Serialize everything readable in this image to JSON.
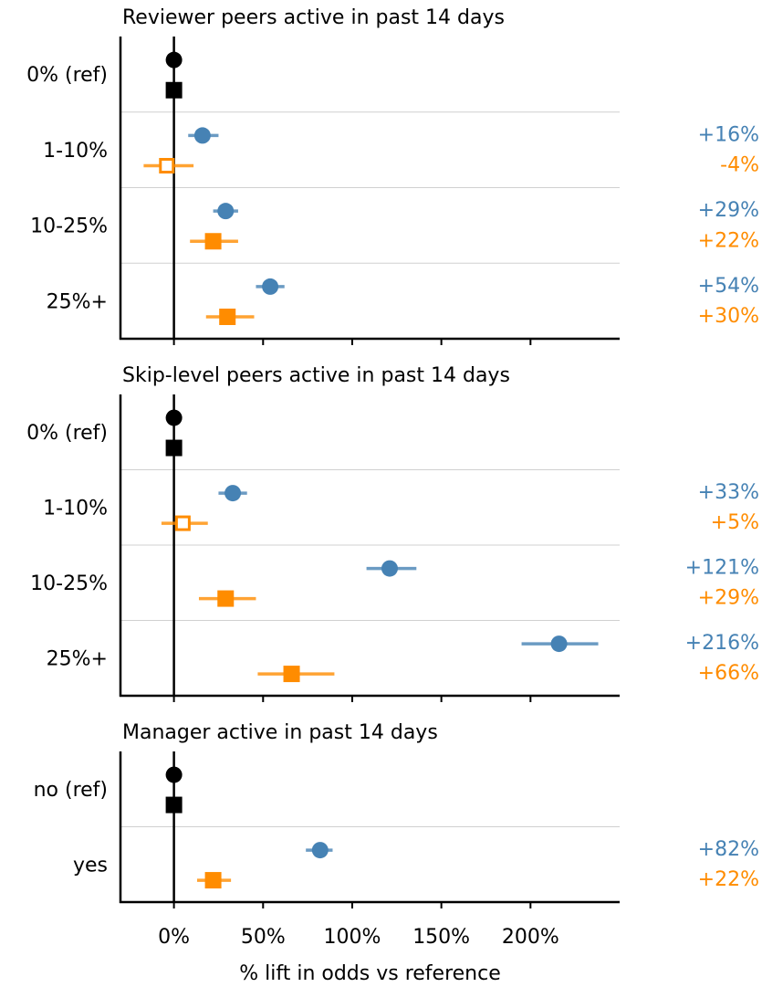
{
  "chart_data": [
    {
      "type": "forest",
      "title": "Reviewer peers active in past 14 days",
      "categories": [
        "0% (ref)",
        "1-10%",
        "10-25%",
        "25%+"
      ],
      "xlim": [
        -30,
        250
      ],
      "series": [
        {
          "marker": "circle",
          "colors": [
            "#000000",
            "#4682b4",
            "#4682b4",
            "#4682b4"
          ],
          "filled": [
            true,
            true,
            true,
            true
          ],
          "values": [
            0,
            16,
            29,
            54
          ],
          "lower": [
            null,
            8,
            22,
            46
          ],
          "upper": [
            null,
            25,
            36,
            62
          ],
          "value_labels": [
            null,
            "+16%",
            "+29%",
            "+54%"
          ]
        },
        {
          "marker": "square",
          "colors": [
            "#000000",
            "#ff8c00",
            "#ff8c00",
            "#ff8c00"
          ],
          "filled": [
            true,
            false,
            true,
            true
          ],
          "values": [
            0,
            -4,
            22,
            30
          ],
          "lower": [
            null,
            -17,
            9,
            18
          ],
          "upper": [
            null,
            11,
            36,
            45
          ],
          "value_labels": [
            null,
            "-4%",
            "+22%",
            "+30%"
          ]
        }
      ]
    },
    {
      "type": "forest",
      "title": "Skip-level peers active in past 14 days",
      "categories": [
        "0% (ref)",
        "1-10%",
        "10-25%",
        "25%+"
      ],
      "xlim": [
        -30,
        250
      ],
      "series": [
        {
          "marker": "circle",
          "colors": [
            "#000000",
            "#4682b4",
            "#4682b4",
            "#4682b4"
          ],
          "filled": [
            true,
            true,
            true,
            true
          ],
          "values": [
            0,
            33,
            121,
            216
          ],
          "lower": [
            null,
            25,
            108,
            195
          ],
          "upper": [
            null,
            41,
            136,
            238
          ],
          "value_labels": [
            null,
            "+33%",
            "+121%",
            "+216%"
          ]
        },
        {
          "marker": "square",
          "colors": [
            "#000000",
            "#ff8c00",
            "#ff8c00",
            "#ff8c00"
          ],
          "filled": [
            true,
            false,
            true,
            true
          ],
          "values": [
            0,
            5,
            29,
            66
          ],
          "lower": [
            null,
            -7,
            14,
            47
          ],
          "upper": [
            null,
            19,
            46,
            90
          ],
          "value_labels": [
            null,
            "+5%",
            "+29%",
            "+66%"
          ]
        }
      ]
    },
    {
      "type": "forest",
      "title": "Manager active in past 14 days",
      "categories": [
        "no (ref)",
        "yes"
      ],
      "xlim": [
        -30,
        250
      ],
      "xticks": [
        {
          "value": 0,
          "label": "0%"
        },
        {
          "value": 50,
          "label": "50%"
        },
        {
          "value": 100,
          "label": "100%"
        },
        {
          "value": 150,
          "label": "150%"
        },
        {
          "value": 200,
          "label": "200%"
        }
      ],
      "xlabel": "% lift in odds vs reference",
      "series": [
        {
          "marker": "circle",
          "colors": [
            "#000000",
            "#4682b4"
          ],
          "filled": [
            true,
            true
          ],
          "values": [
            0,
            82
          ],
          "lower": [
            null,
            74
          ],
          "upper": [
            null,
            89
          ],
          "value_labels": [
            null,
            "+82%"
          ]
        },
        {
          "marker": "square",
          "colors": [
            "#000000",
            "#ff8c00"
          ],
          "filled": [
            true,
            true
          ],
          "values": [
            0,
            22
          ],
          "lower": [
            null,
            13
          ],
          "upper": [
            null,
            32
          ],
          "value_labels": [
            null,
            "+22%"
          ]
        }
      ]
    }
  ]
}
